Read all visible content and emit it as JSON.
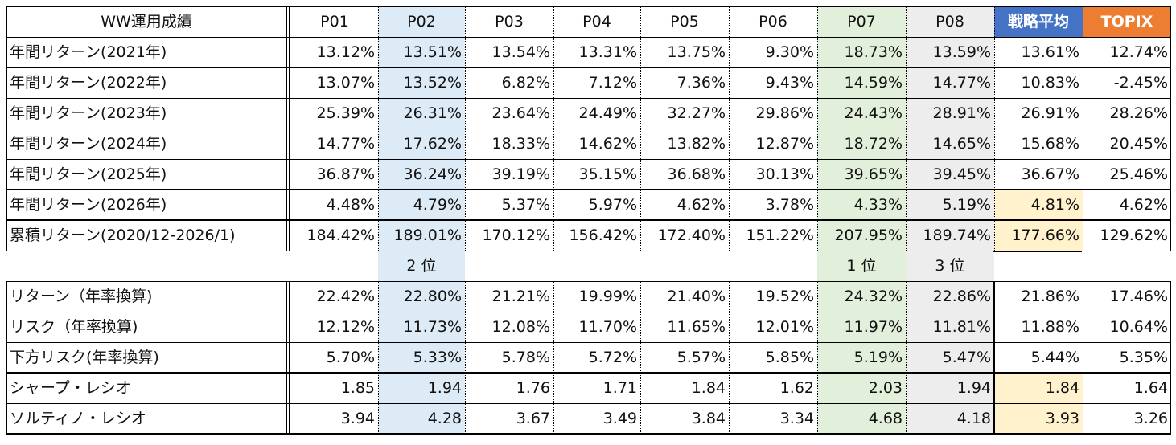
{
  "header": {
    "title": "WW運用成績",
    "columns": [
      "P01",
      "P02",
      "P03",
      "P04",
      "P05",
      "P06",
      "P07",
      "P08",
      "戦略平均",
      "TOPIX"
    ]
  },
  "top_rows": [
    {
      "label": "年間リターン(2021年)",
      "values": [
        "13.12%",
        "13.51%",
        "13.54%",
        "13.31%",
        "13.75%",
        "9.30%",
        "18.73%",
        "13.59%",
        "13.61%",
        "12.74%"
      ]
    },
    {
      "label": "年間リターン(2022年)",
      "values": [
        "13.07%",
        "13.52%",
        "6.82%",
        "7.12%",
        "7.36%",
        "9.43%",
        "14.59%",
        "14.77%",
        "10.83%",
        "-2.45%"
      ]
    },
    {
      "label": "年間リターン(2023年)",
      "values": [
        "25.39%",
        "26.31%",
        "23.64%",
        "24.49%",
        "32.27%",
        "29.86%",
        "24.43%",
        "28.91%",
        "26.91%",
        "28.26%"
      ]
    },
    {
      "label": "年間リターン(2024年)",
      "values": [
        "14.77%",
        "17.62%",
        "18.33%",
        "14.62%",
        "13.82%",
        "12.87%",
        "18.72%",
        "14.65%",
        "15.68%",
        "20.45%"
      ]
    },
    {
      "label": "年間リターン(2025年)",
      "values": [
        "36.87%",
        "36.24%",
        "39.19%",
        "35.15%",
        "36.68%",
        "30.13%",
        "39.65%",
        "39.45%",
        "36.67%",
        "25.46%"
      ]
    },
    {
      "label": "年間リターン(2026年)",
      "values": [
        "4.48%",
        "4.79%",
        "5.37%",
        "5.97%",
        "4.62%",
        "3.78%",
        "4.33%",
        "5.19%",
        "4.81%",
        "4.62%"
      ]
    },
    {
      "label": "累積リターン(2020/12-2026/1)",
      "values": [
        "184.42%",
        "189.01%",
        "170.12%",
        "156.42%",
        "172.40%",
        "151.22%",
        "207.95%",
        "189.74%",
        "177.66%",
        "129.62%"
      ]
    }
  ],
  "ranks": {
    "1": "2 位",
    "6": "1 位",
    "7": "3 位"
  },
  "bottom_rows": [
    {
      "label": "リターン（年率換算)",
      "values": [
        "22.42%",
        "22.80%",
        "21.21%",
        "19.99%",
        "21.40%",
        "19.52%",
        "24.32%",
        "22.86%",
        "21.86%",
        "17.46%"
      ]
    },
    {
      "label": "リスク（年率換算)",
      "values": [
        "12.12%",
        "11.73%",
        "12.08%",
        "11.70%",
        "11.65%",
        "12.01%",
        "11.97%",
        "11.81%",
        "11.88%",
        "10.64%"
      ]
    },
    {
      "label": "下方リスク(年率換算)",
      "values": [
        "5.70%",
        "5.33%",
        "5.78%",
        "5.72%",
        "5.57%",
        "5.85%",
        "5.19%",
        "5.47%",
        "5.44%",
        "5.35%"
      ]
    },
    {
      "label": "シャープ・レシオ",
      "values": [
        "1.85",
        "1.94",
        "1.76",
        "1.71",
        "1.84",
        "1.62",
        "2.03",
        "1.94",
        "1.84",
        "1.64"
      ]
    },
    {
      "label": "ソルティノ・レシオ",
      "values": [
        "3.94",
        "4.28",
        "3.67",
        "3.49",
        "3.84",
        "3.34",
        "4.68",
        "4.18",
        "3.93",
        "3.26"
      ]
    }
  ]
}
